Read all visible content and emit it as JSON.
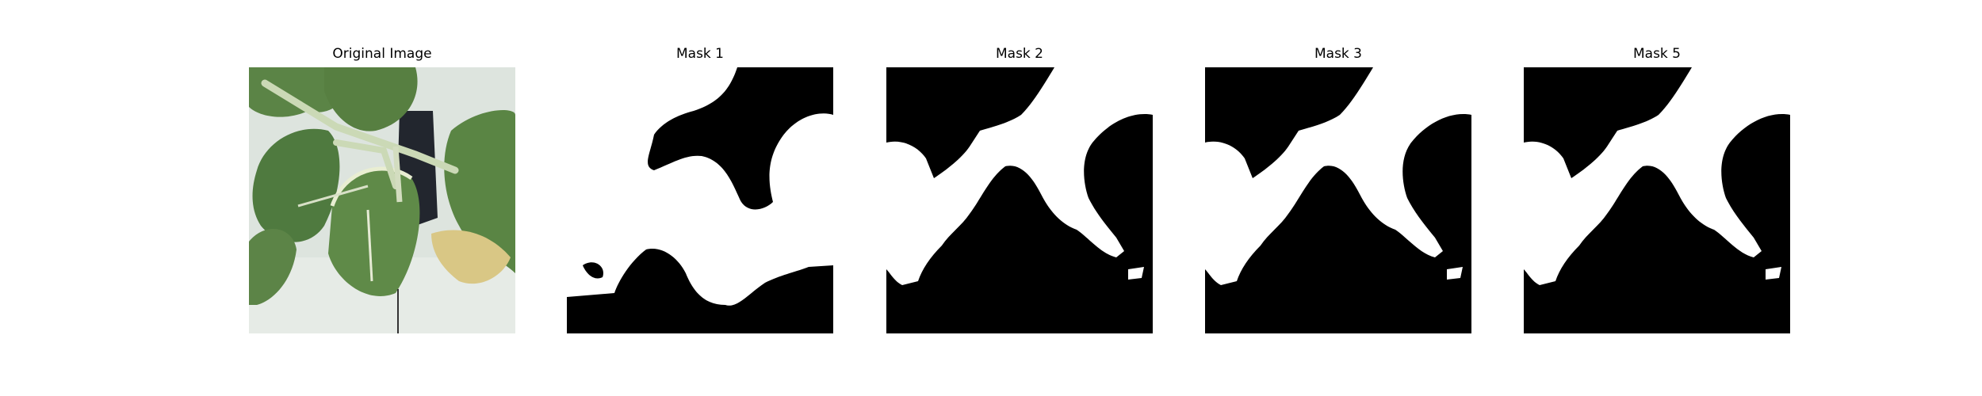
{
  "panels": [
    {
      "title": "Original Image",
      "kind": "photo"
    },
    {
      "title": "Mask 1",
      "kind": "mask"
    },
    {
      "title": "Mask 2",
      "kind": "mask"
    },
    {
      "title": "Mask 3",
      "kind": "mask"
    },
    {
      "title": "Mask 5",
      "kind": "mask"
    }
  ],
  "colors": {
    "mask_foreground": "#ffffff",
    "mask_background": "#000000",
    "leaf_dark": "#4f7a3f",
    "leaf_mid": "#6a9152",
    "stem": "#cbd9b6",
    "photo_background": "#dde4de",
    "yellow_leaf": "#d9c785"
  }
}
